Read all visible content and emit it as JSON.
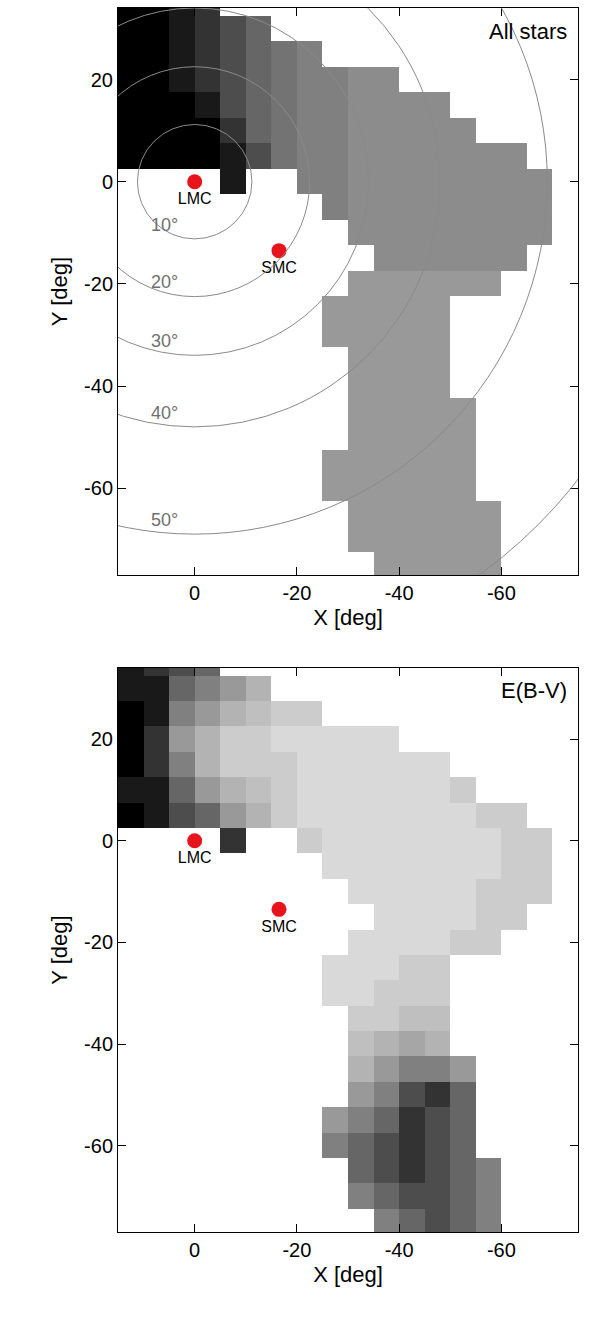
{
  "chart_data": [
    {
      "type": "heatmap",
      "title": "All stars",
      "xlabel": "X [deg]",
      "ylabel": "Y [deg]",
      "xlim": [
        15,
        -75
      ],
      "ylim": [
        -77,
        34
      ],
      "xticks": [
        0,
        -20,
        -40,
        -60
      ],
      "yticks": [
        20,
        0,
        -20,
        -40,
        -60
      ],
      "grid": false,
      "zlim": [
        0,
        10
      ],
      "x": [
        12.5,
        7.5,
        2.5,
        -2.5,
        -7.5,
        -12.5,
        -17.5,
        -22.5,
        -27.5,
        -32.5,
        -37.5,
        -42.5,
        -47.5,
        -52.5,
        -57.5,
        -62.5,
        -67.5,
        -72.5
      ],
      "y": [
        -75,
        -70,
        -65,
        -60,
        -55,
        -50,
        -45,
        -40,
        -35,
        -30,
        -25,
        -20,
        -15,
        -10,
        -5,
        0,
        5,
        10,
        15,
        20,
        25,
        30,
        35
      ],
      "z": [
        [
          null,
          null,
          null,
          null,
          null,
          null,
          null,
          null,
          null,
          null,
          4,
          4,
          4,
          4,
          4,
          null,
          null,
          null
        ],
        [
          null,
          null,
          null,
          null,
          null,
          null,
          null,
          null,
          null,
          4,
          4,
          4,
          4,
          4,
          4,
          null,
          null,
          null
        ],
        [
          null,
          null,
          null,
          null,
          null,
          null,
          null,
          null,
          null,
          4,
          4,
          4,
          4,
          4,
          4,
          null,
          null,
          null
        ],
        [
          null,
          null,
          null,
          null,
          null,
          null,
          null,
          null,
          4,
          4,
          4,
          4,
          4,
          4,
          null,
          null,
          null,
          null
        ],
        [
          null,
          null,
          null,
          null,
          null,
          null,
          null,
          null,
          4,
          4,
          4,
          4,
          4,
          4,
          null,
          null,
          null,
          null
        ],
        [
          null,
          null,
          null,
          null,
          null,
          null,
          null,
          null,
          null,
          4,
          4,
          4,
          4,
          4,
          null,
          null,
          null,
          null
        ],
        [
          null,
          null,
          null,
          null,
          null,
          null,
          null,
          null,
          null,
          4,
          4,
          4,
          4,
          4,
          null,
          null,
          null,
          null
        ],
        [
          null,
          null,
          null,
          null,
          null,
          null,
          null,
          null,
          null,
          4,
          4,
          4,
          4,
          null,
          null,
          null,
          null,
          null
        ],
        [
          null,
          null,
          null,
          null,
          null,
          null,
          null,
          null,
          null,
          4,
          4,
          4,
          4,
          null,
          null,
          null,
          null,
          null
        ],
        [
          null,
          null,
          null,
          null,
          null,
          null,
          null,
          null,
          4,
          4,
          4,
          4,
          4,
          null,
          null,
          null,
          null,
          null
        ],
        [
          null,
          null,
          null,
          null,
          null,
          null,
          null,
          null,
          4,
          4,
          4,
          4,
          4,
          null,
          null,
          null,
          null,
          null
        ],
        [
          null,
          null,
          null,
          null,
          null,
          null,
          null,
          null,
          null,
          4,
          4,
          4,
          4,
          4,
          4,
          null,
          null,
          null
        ],
        [
          null,
          null,
          null,
          null,
          null,
          null,
          null,
          null,
          null,
          null,
          4.5,
          4.5,
          4.5,
          4.5,
          4.5,
          4.5,
          null,
          null
        ],
        [
          null,
          null,
          null,
          null,
          null,
          null,
          null,
          null,
          null,
          4.5,
          4.5,
          4.5,
          4.5,
          4.5,
          4.5,
          4.5,
          4.5,
          null
        ],
        [
          null,
          null,
          null,
          null,
          null,
          null,
          null,
          null,
          5,
          4.5,
          4.5,
          4.5,
          4.5,
          4.5,
          4.5,
          4.5,
          4.5,
          null
        ],
        [
          null,
          null,
          null,
          null,
          9,
          null,
          null,
          5,
          5,
          4.5,
          4.5,
          4.5,
          4.5,
          4.5,
          4.5,
          4.5,
          4.5,
          null
        ],
        [
          10,
          10,
          10,
          10,
          9,
          7,
          5.5,
          5,
          5,
          4.5,
          4.5,
          4.5,
          4.5,
          4.5,
          4.5,
          4.5,
          null,
          null
        ],
        [
          10,
          10,
          10,
          10,
          8,
          6,
          5.5,
          5,
          5,
          4.5,
          4.5,
          4.5,
          4.5,
          4.5,
          null,
          null,
          null,
          null
        ],
        [
          10,
          10,
          10,
          9,
          7,
          6,
          5.5,
          5,
          5,
          4.5,
          4.5,
          4.5,
          4.5,
          null,
          null,
          null,
          null,
          null
        ],
        [
          10,
          10,
          9,
          8,
          7,
          6,
          5.5,
          5,
          5,
          4.5,
          4.5,
          null,
          null,
          null,
          null,
          null,
          null,
          null
        ],
        [
          10,
          10,
          9,
          8,
          7,
          6,
          5.5,
          5,
          null,
          null,
          null,
          null,
          null,
          null,
          null,
          null,
          null,
          null
        ],
        [
          10,
          10,
          9,
          8,
          7,
          6,
          null,
          null,
          null,
          null,
          null,
          null,
          null,
          null,
          null,
          null,
          null,
          null
        ],
        [
          10,
          10,
          9,
          8,
          null,
          null,
          null,
          null,
          null,
          null,
          null,
          null,
          null,
          null,
          null,
          null,
          null,
          null
        ]
      ],
      "points": {
        "names": [
          "LMC",
          "SMC"
        ],
        "x": [
          0,
          -16.5
        ],
        "y": [
          0,
          -13.5
        ],
        "color": "#e8141c"
      },
      "circles": {
        "center": [
          0,
          0
        ],
        "radii": [
          11.2,
          22.5,
          34,
          48,
          69,
          95
        ],
        "labels": [
          "10°",
          "20°",
          "30°",
          "40°",
          "50°",
          null
        ]
      }
    },
    {
      "type": "heatmap",
      "title": "E(B-V)",
      "xlabel": "X [deg]",
      "ylabel": "Y [deg]",
      "xlim": [
        15,
        -75
      ],
      "ylim": [
        -77,
        34
      ],
      "xticks": [
        0,
        -20,
        -40,
        -60
      ],
      "yticks": [
        20,
        0,
        -20,
        -40,
        -60
      ],
      "grid": false,
      "zlim": [
        0,
        10
      ],
      "x": [
        12.5,
        7.5,
        2.5,
        -2.5,
        -7.5,
        -12.5,
        -17.5,
        -22.5,
        -27.5,
        -32.5,
        -37.5,
        -42.5,
        -47.5,
        -52.5,
        -57.5,
        -62.5,
        -67.5,
        -72.5
      ],
      "y": [
        -75,
        -70,
        -65,
        -60,
        -55,
        -50,
        -45,
        -40,
        -35,
        -30,
        -25,
        -20,
        -15,
        -10,
        -5,
        0,
        5,
        10,
        15,
        20,
        25,
        30,
        35
      ],
      "z": [
        [
          null,
          null,
          null,
          null,
          null,
          null,
          null,
          null,
          null,
          null,
          5,
          6,
          7,
          6,
          5,
          null,
          null,
          null
        ],
        [
          null,
          null,
          null,
          null,
          null,
          null,
          null,
          null,
          null,
          5,
          6,
          7,
          7,
          6,
          5,
          null,
          null,
          null
        ],
        [
          null,
          null,
          null,
          null,
          null,
          null,
          null,
          null,
          null,
          6,
          7,
          8,
          7,
          6,
          5,
          null,
          null,
          null
        ],
        [
          null,
          null,
          null,
          null,
          null,
          null,
          null,
          null,
          5,
          6,
          7,
          8,
          7,
          6,
          null,
          null,
          null,
          null
        ],
        [
          null,
          null,
          null,
          null,
          null,
          null,
          null,
          null,
          4,
          5,
          6,
          8,
          7,
          6,
          null,
          null,
          null,
          null
        ],
        [
          null,
          null,
          null,
          null,
          null,
          null,
          null,
          null,
          null,
          4,
          5,
          7,
          8,
          6,
          null,
          null,
          null,
          null
        ],
        [
          null,
          null,
          null,
          null,
          null,
          null,
          null,
          null,
          null,
          3,
          4,
          5,
          5,
          4,
          null,
          null,
          null,
          null
        ],
        [
          null,
          null,
          null,
          null,
          null,
          null,
          null,
          null,
          null,
          2.5,
          3,
          3.5,
          3,
          null,
          null,
          null,
          null,
          null
        ],
        [
          null,
          null,
          null,
          null,
          null,
          null,
          null,
          null,
          null,
          2,
          2,
          2.5,
          2.5,
          null,
          null,
          null,
          null,
          null
        ],
        [
          null,
          null,
          null,
          null,
          null,
          null,
          null,
          null,
          1.5,
          1.5,
          2,
          2,
          2,
          null,
          null,
          null,
          null,
          null
        ],
        [
          null,
          null,
          null,
          null,
          null,
          null,
          null,
          null,
          1.5,
          1.5,
          1.5,
          2,
          2,
          null,
          null,
          null,
          null,
          null
        ],
        [
          null,
          null,
          null,
          null,
          null,
          null,
          null,
          null,
          null,
          1.5,
          1.5,
          1.5,
          1.5,
          2,
          2,
          null,
          null,
          null
        ],
        [
          null,
          null,
          null,
          null,
          null,
          null,
          null,
          null,
          null,
          null,
          1.5,
          1.5,
          1.5,
          1.5,
          2,
          2,
          null,
          null
        ],
        [
          null,
          null,
          null,
          null,
          null,
          null,
          null,
          null,
          null,
          1.5,
          1.5,
          1.5,
          1.5,
          1.5,
          2,
          2,
          2,
          null
        ],
        [
          null,
          null,
          null,
          null,
          null,
          null,
          null,
          null,
          1.5,
          1.5,
          1.5,
          1.5,
          1.5,
          1.5,
          1.5,
          2,
          2,
          null
        ],
        [
          null,
          null,
          null,
          null,
          8,
          null,
          null,
          2,
          1.5,
          1.5,
          1.5,
          1.5,
          1.5,
          1.5,
          1.5,
          2,
          2,
          null
        ],
        [
          10,
          9,
          7,
          6,
          4,
          3,
          2,
          1.5,
          1.5,
          1.5,
          1.5,
          1.5,
          1.5,
          1.5,
          2,
          2,
          null,
          null
        ],
        [
          9,
          9,
          6,
          4,
          3,
          2.5,
          2,
          1.5,
          1.5,
          1.5,
          1.5,
          1.5,
          1.5,
          2,
          null,
          null,
          null,
          null
        ],
        [
          10,
          8,
          5,
          3,
          2,
          2,
          2,
          1.5,
          1.5,
          1.5,
          1.5,
          1.5,
          1.5,
          null,
          null,
          null,
          null,
          null
        ],
        [
          10,
          8,
          4,
          3,
          2,
          2,
          1.5,
          1.5,
          1.5,
          1.5,
          1.5,
          null,
          null,
          null,
          null,
          null,
          null,
          null
        ],
        [
          10,
          9,
          5,
          4,
          3,
          2.5,
          2,
          2,
          null,
          null,
          null,
          null,
          null,
          null,
          null,
          null,
          null,
          null
        ],
        [
          9,
          9,
          6,
          5,
          4,
          3,
          null,
          null,
          null,
          null,
          null,
          null,
          null,
          null,
          null,
          null,
          null,
          null
        ],
        [
          9,
          8,
          7,
          6,
          null,
          null,
          null,
          null,
          null,
          null,
          null,
          null,
          null,
          null,
          null,
          null,
          null,
          null
        ]
      ],
      "points": {
        "names": [
          "LMC",
          "SMC"
        ],
        "x": [
          0,
          -16.5
        ],
        "y": [
          0,
          -13.5
        ],
        "color": "#e8141c"
      }
    }
  ]
}
